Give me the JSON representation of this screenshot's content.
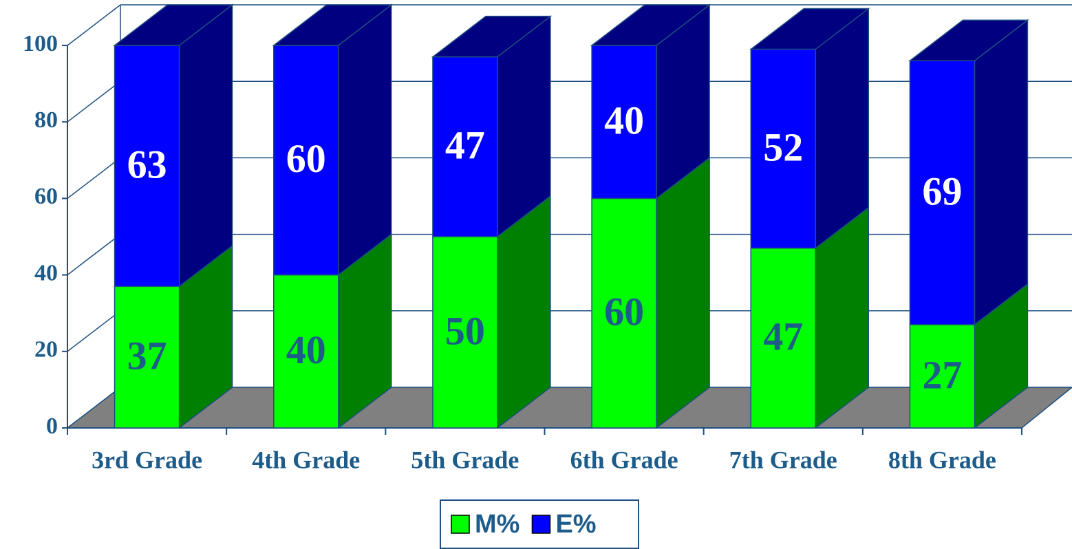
{
  "chart_data": {
    "type": "bar3d_stacked",
    "categories": [
      "3rd Grade",
      "4th Grade",
      "5th Grade",
      "6th Grade",
      "7th Grade",
      "8th Grade"
    ],
    "series": [
      {
        "name": "M%",
        "color": "#00ff00",
        "side_color": "#008000",
        "label_color": "#1c5b8a",
        "values": [
          37,
          40,
          50,
          60,
          47,
          27
        ]
      },
      {
        "name": "E%",
        "color": "#0000ff",
        "side_color": "#000080",
        "label_color": "#ffffff",
        "values": [
          63,
          60,
          47,
          40,
          52,
          69
        ]
      }
    ],
    "ylim": [
      0,
      100
    ],
    "yticks": [
      0,
      20,
      40,
      60,
      80,
      100
    ],
    "grid": true,
    "legend": "bottom"
  }
}
